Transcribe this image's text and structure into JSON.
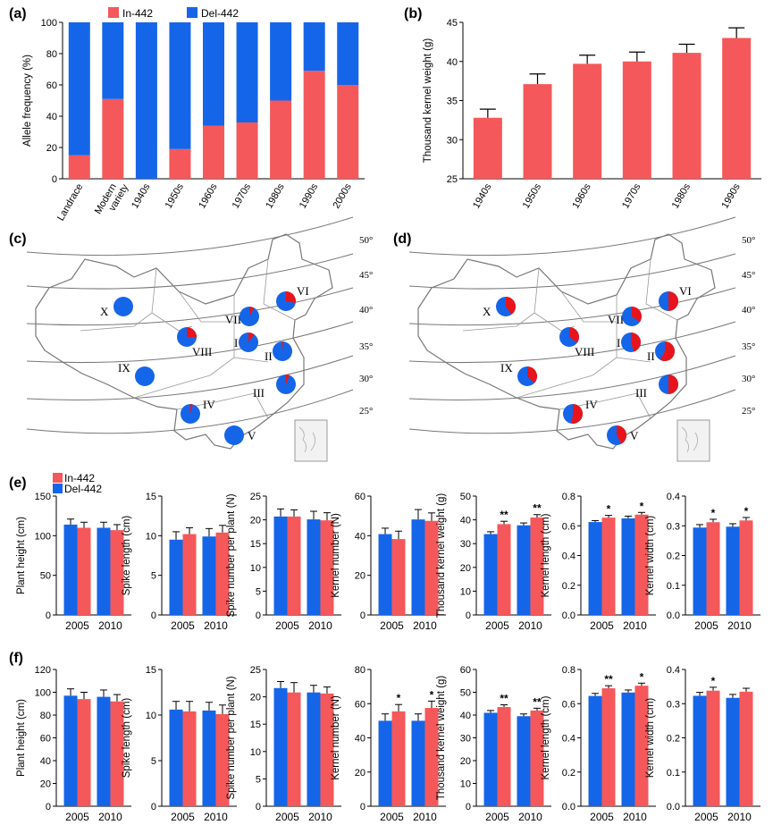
{
  "colors": {
    "in": "#f4585a",
    "del": "#1565e8",
    "pie_in": "#e8141c",
    "pie_del": "#1565e8"
  },
  "legend": {
    "in": "In-442",
    "del": "Del-442"
  },
  "panels": {
    "a": "(a)",
    "b": "(b)",
    "c": "(c)",
    "d": "(d)",
    "e": "(e)",
    "f": "(f)"
  },
  "map": {
    "latitudes": [
      "50°",
      "45°",
      "40°",
      "35°",
      "30°",
      "25°"
    ],
    "region_names": [
      "I",
      "II",
      "III",
      "IV",
      "V",
      "VI",
      "VII",
      "VIII",
      "IX",
      "X"
    ]
  },
  "chart_data": [
    {
      "id": "a",
      "type": "bar",
      "stacked": true,
      "categories": [
        "Landrace",
        "Modern variety",
        "1940s",
        "1950s",
        "1960s",
        "1970s",
        "1980s",
        "1990s",
        "2000s"
      ],
      "series": [
        {
          "name": "In-442",
          "values": [
            15,
            51,
            0,
            19,
            34,
            36,
            50,
            69,
            60
          ]
        },
        {
          "name": "Del-442",
          "values": [
            85,
            49,
            100,
            81,
            66,
            64,
            50,
            31,
            40
          ]
        }
      ],
      "ylabel": "Allele frequency (%)",
      "ylim": [
        0,
        100
      ],
      "yticks": [
        0,
        20,
        40,
        60,
        80,
        100
      ]
    },
    {
      "id": "b",
      "type": "bar",
      "categories": [
        "1940s",
        "1950s",
        "1960s",
        "1970s",
        "1980s",
        "1990s"
      ],
      "values": [
        32.8,
        37.1,
        39.7,
        40.0,
        41.1,
        43.0
      ],
      "errors": [
        1.1,
        1.3,
        1.1,
        1.2,
        1.1,
        1.3
      ],
      "ylabel": "Thousand kernel weight (g)",
      "ylim": [
        25,
        45
      ],
      "yticks": [
        25,
        30,
        35,
        40,
        45
      ]
    },
    {
      "id": "c",
      "type": "pie",
      "note": "In-442 fraction per region",
      "regions": [
        "I",
        "II",
        "III",
        "IV",
        "V",
        "VI",
        "VII",
        "VIII",
        "IX",
        "X"
      ],
      "in_fraction": [
        0.1,
        0.02,
        0.06,
        0.04,
        0,
        0.28,
        0.08,
        0.25,
        0,
        0
      ]
    },
    {
      "id": "d",
      "type": "pie",
      "note": "In-442 fraction per region",
      "regions": [
        "I",
        "II",
        "III",
        "IV",
        "V",
        "VI",
        "VII",
        "VIII",
        "IX",
        "X"
      ],
      "in_fraction": [
        0.45,
        0.58,
        0.5,
        0.52,
        0.42,
        0.5,
        0.35,
        0.35,
        0.37,
        0.4
      ]
    },
    {
      "id": "e",
      "type": "bar",
      "subplots": [
        {
          "ylabel": "Plant height (cm)",
          "ylim": [
            0,
            150
          ],
          "yticks": [
            0,
            50,
            100,
            150
          ],
          "yfmt": 0,
          "categories": [
            "2005",
            "2010"
          ],
          "del": [
            114,
            110
          ],
          "in": [
            110,
            107
          ],
          "del_err": [
            7,
            7
          ],
          "in_err": [
            7,
            7
          ],
          "marks": [
            "",
            ""
          ]
        },
        {
          "ylabel": "Spike length (cm)",
          "ylim": [
            0,
            15
          ],
          "yticks": [
            0,
            5,
            10,
            15
          ],
          "yfmt": 0,
          "categories": [
            "2005",
            "2010"
          ],
          "del": [
            9.5,
            9.9
          ],
          "in": [
            10.2,
            10.4
          ],
          "del_err": [
            1.0,
            1.0
          ],
          "in_err": [
            0.8,
            0.9
          ],
          "marks": [
            "",
            ""
          ]
        },
        {
          "ylabel": "Spike number per plant (N)",
          "ylim": [
            0,
            25
          ],
          "yticks": [
            0,
            5,
            10,
            15,
            20,
            25
          ],
          "yfmt": 0,
          "categories": [
            "2005",
            "2010"
          ],
          "del": [
            20.7,
            20.1
          ],
          "in": [
            20.7,
            19.9
          ],
          "del_err": [
            1.6,
            1.7
          ],
          "in_err": [
            1.4,
            1.6
          ],
          "marks": [
            "",
            ""
          ]
        },
        {
          "ylabel": "Kernel number (N)",
          "ylim": [
            0,
            60
          ],
          "yticks": [
            0,
            20,
            40,
            60
          ],
          "yfmt": 0,
          "categories": [
            "2005",
            "2010"
          ],
          "del": [
            40.8,
            48.2
          ],
          "in": [
            38.3,
            47.5
          ],
          "del_err": [
            3,
            5
          ],
          "in_err": [
            4,
            4
          ],
          "marks": [
            "",
            ""
          ]
        },
        {
          "ylabel": "Thousand kernel weight (g)",
          "ylim": [
            0,
            50
          ],
          "yticks": [
            0,
            10,
            20,
            30,
            40,
            50
          ],
          "yfmt": 0,
          "categories": [
            "2005",
            "2010"
          ],
          "del": [
            34,
            37.7
          ],
          "in": [
            38.2,
            41
          ],
          "del_err": [
            1,
            1
          ],
          "in_err": [
            1.2,
            1.2
          ],
          "marks": [
            "**",
            "**"
          ]
        },
        {
          "ylabel": "Kernel length (cm)",
          "ylim": [
            0,
            0.8
          ],
          "yticks": [
            0,
            0.2,
            0.4,
            0.6,
            0.8
          ],
          "yfmt": 1,
          "categories": [
            "2005",
            "2010"
          ],
          "del": [
            0.625,
            0.65
          ],
          "in": [
            0.655,
            0.675
          ],
          "del_err": [
            0.01,
            0.015
          ],
          "in_err": [
            0.015,
            0.015
          ],
          "marks": [
            "*",
            "*"
          ]
        },
        {
          "ylabel": "Kernel width (cm)",
          "ylim": [
            0,
            0.4
          ],
          "yticks": [
            0,
            0.1,
            0.2,
            0.3,
            0.4
          ],
          "yfmt": 1,
          "categories": [
            "2005",
            "2010"
          ],
          "del": [
            0.294,
            0.297
          ],
          "in": [
            0.312,
            0.318
          ],
          "del_err": [
            0.01,
            0.01
          ],
          "in_err": [
            0.01,
            0.01
          ],
          "marks": [
            "*",
            "*"
          ]
        }
      ]
    },
    {
      "id": "f",
      "type": "bar",
      "subplots": [
        {
          "ylabel": "Plant height (cm)",
          "ylim": [
            0,
            120
          ],
          "yticks": [
            0,
            20,
            40,
            60,
            80,
            100,
            120
          ],
          "yfmt": 0,
          "categories": [
            "2005",
            "2010"
          ],
          "del": [
            97,
            96
          ],
          "in": [
            94,
            92
          ],
          "del_err": [
            6,
            6
          ],
          "in_err": [
            6,
            6
          ],
          "marks": [
            "",
            ""
          ]
        },
        {
          "ylabel": "Spike length (cm)",
          "ylim": [
            0,
            15
          ],
          "yticks": [
            0,
            5,
            10,
            15
          ],
          "yfmt": 0,
          "categories": [
            "2005",
            "2010"
          ],
          "del": [
            10.6,
            10.5
          ],
          "in": [
            10.4,
            10.1
          ],
          "del_err": [
            0.9,
            0.9
          ],
          "in_err": [
            1.1,
            1.0
          ],
          "marks": [
            "",
            ""
          ]
        },
        {
          "ylabel": "Spike number per plant (N)",
          "ylim": [
            0,
            25
          ],
          "yticks": [
            0,
            5,
            10,
            15,
            20,
            25
          ],
          "yfmt": 0,
          "categories": [
            "2005",
            "2010"
          ],
          "del": [
            21.6,
            20.8
          ],
          "in": [
            20.8,
            20.6
          ],
          "del_err": [
            1.2,
            1.3
          ],
          "in_err": [
            1.8,
            1.2
          ],
          "marks": [
            "",
            ""
          ]
        },
        {
          "ylabel": "Kernel number (N)",
          "ylim": [
            0,
            80
          ],
          "yticks": [
            0,
            20,
            40,
            60,
            80
          ],
          "yfmt": 0,
          "categories": [
            "2005",
            "2010"
          ],
          "del": [
            50,
            50
          ],
          "in": [
            55.5,
            57.5
          ],
          "del_err": [
            4,
            4
          ],
          "in_err": [
            4,
            4
          ],
          "marks": [
            "*",
            "*"
          ]
        },
        {
          "ylabel": "Thousand kernel weight (g)",
          "ylim": [
            0,
            60
          ],
          "yticks": [
            0,
            10,
            20,
            30,
            40,
            50,
            60
          ],
          "yfmt": 0,
          "categories": [
            "2005",
            "2010"
          ],
          "del": [
            41,
            39.5
          ],
          "in": [
            43.5,
            42
          ],
          "del_err": [
            1,
            1
          ],
          "in_err": [
            1,
            1
          ],
          "marks": [
            "**",
            "**"
          ]
        },
        {
          "ylabel": "Kernel length (cm)",
          "ylim": [
            0,
            0.8
          ],
          "yticks": [
            0,
            0.2,
            0.4,
            0.6,
            0.8
          ],
          "yfmt": 1,
          "categories": [
            "2005",
            "2010"
          ],
          "del": [
            0.645,
            0.665
          ],
          "in": [
            0.69,
            0.705
          ],
          "del_err": [
            0.015,
            0.015
          ],
          "in_err": [
            0.015,
            0.015
          ],
          "marks": [
            "**",
            "*"
          ]
        },
        {
          "ylabel": "Kernel width (cm)",
          "ylim": [
            0,
            0.4
          ],
          "yticks": [
            0,
            0.1,
            0.2,
            0.3,
            0.4
          ],
          "yfmt": 1,
          "categories": [
            "2005",
            "2010"
          ],
          "del": [
            0.323,
            0.317
          ],
          "in": [
            0.338,
            0.335
          ],
          "del_err": [
            0.01,
            0.01
          ],
          "in_err": [
            0.01,
            0.01
          ],
          "marks": [
            "*",
            ""
          ]
        }
      ]
    }
  ]
}
